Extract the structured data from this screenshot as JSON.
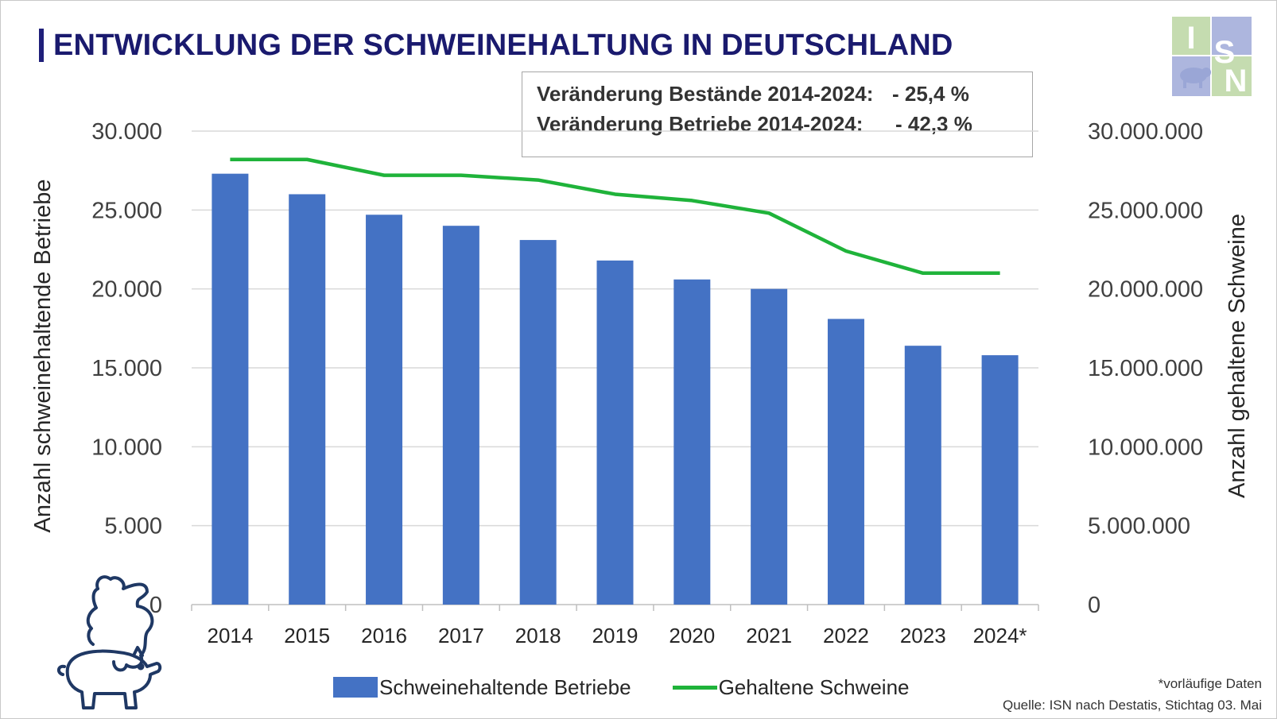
{
  "title": "ENTWICKLUNG DER SCHWEINEHALTUNG IN DEUTSCHLAND",
  "logo": {
    "letters": [
      "I",
      "S",
      "N"
    ],
    "colors": [
      "#c5dcb0",
      "#adb6de",
      "#c5dcb0"
    ],
    "icon": "pig-icon"
  },
  "info_box": {
    "line1_label": "Veränderung Bestände 2014-2024:",
    "line1_value": "- 25,4 %",
    "line2_label": "Veränderung Betriebe  2014-2024:",
    "line2_value": "- 42,3 %"
  },
  "chart_data": {
    "type": "bar",
    "categories": [
      "2014",
      "2015",
      "2016",
      "2017",
      "2018",
      "2019",
      "2020",
      "2021",
      "2022",
      "2023",
      "2024*"
    ],
    "series": [
      {
        "name": "Schweinehaltende Betriebe",
        "type": "bar",
        "axis": "left",
        "color": "#4472c4",
        "values": [
          27300,
          26000,
          24700,
          24000,
          23100,
          21800,
          20600,
          20000,
          18100,
          16400,
          15800
        ]
      },
      {
        "name": "Gehaltene Schweine",
        "type": "line",
        "axis": "right",
        "color": "#1fb33a",
        "values": [
          28200000,
          28200000,
          27200000,
          27200000,
          26900000,
          26000000,
          25600000,
          24800000,
          22400000,
          21000000,
          21000000
        ]
      }
    ],
    "ylabel": "Anzahl schweinehaltende Betriebe",
    "y2label": "Anzahl gehaltene Schweine",
    "ylim": [
      0,
      30000
    ],
    "y2lim": [
      0,
      30000000
    ],
    "yticks": [
      "0",
      "5.000",
      "10.000",
      "15.000",
      "20.000",
      "25.000",
      "30.000"
    ],
    "y2ticks": [
      "0",
      "5.000.000",
      "10.000.000",
      "15.000.000",
      "20.000.000",
      "25.000.000",
      "30.000.000"
    ],
    "grid": true,
    "legend_position": "bottom"
  },
  "footnote": {
    "note": "*vorläufige Daten",
    "source": "Quelle: ISN nach Destatis, Stichtag 03. Mai"
  }
}
